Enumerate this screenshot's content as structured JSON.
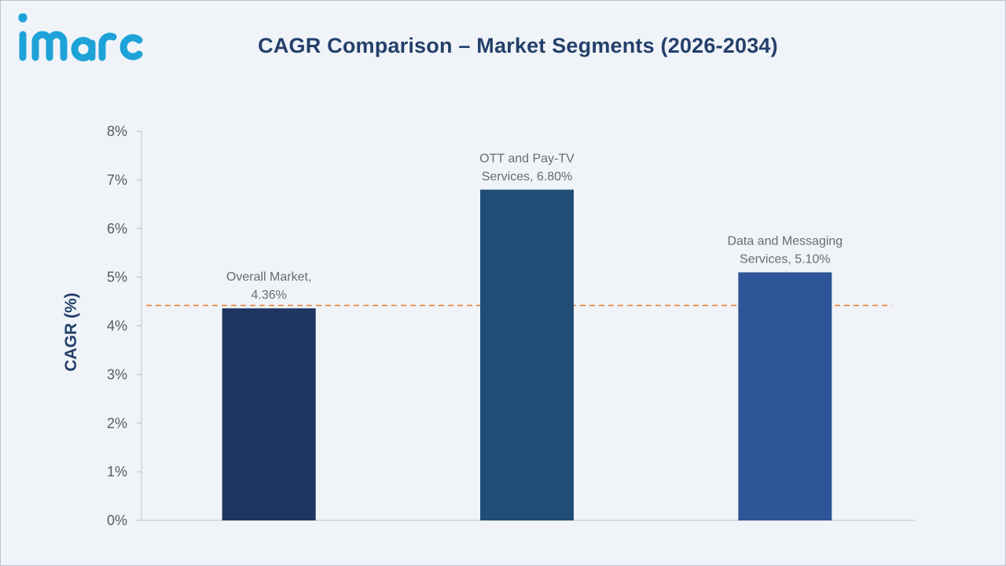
{
  "brand": {
    "name": "imarc",
    "color": "#1ea3d8"
  },
  "chart_data": {
    "type": "bar",
    "title": "CAGR Comparison – Market Segments (2026-2034)",
    "ylabel": "CAGR (%)",
    "xlabel": "",
    "ylim": [
      0,
      8
    ],
    "yticks": [
      0,
      1,
      2,
      3,
      4,
      5,
      6,
      7,
      8
    ],
    "ytick_labels": [
      "0%",
      "1%",
      "2%",
      "3%",
      "4%",
      "5%",
      "6%",
      "7%",
      "8%"
    ],
    "categories": [
      "Overall Market",
      "OTT and Pay-TV Services",
      "Data and Messaging Services"
    ],
    "values": [
      4.36,
      6.8,
      5.1
    ],
    "data_labels": [
      [
        "Overall Market,",
        "4.36%"
      ],
      [
        "OTT and Pay-TV",
        "Services, 6.80%"
      ],
      [
        "Data and Messaging",
        "Services, 5.10%"
      ]
    ],
    "bar_colors": [
      "#1f3660",
      "#1f4d78",
      "#2e5597"
    ],
    "reference_line": {
      "value": 4.42,
      "style": "dashed",
      "color": "#e9853a"
    },
    "grid": false,
    "legend": "none"
  }
}
